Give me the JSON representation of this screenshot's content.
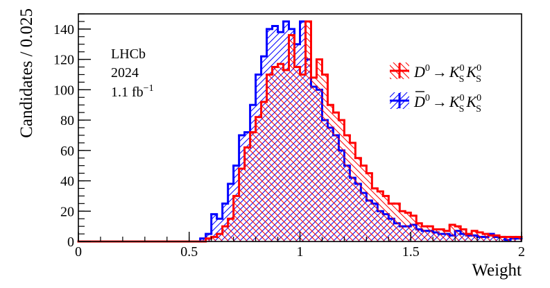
{
  "chart_data": {
    "type": "histogram",
    "title": "",
    "xlabel": "Weight",
    "ylabel": "Candidates / 0.025",
    "xlim": [
      0,
      2
    ],
    "ylim": [
      0,
      150
    ],
    "bin_width": 0.025,
    "x_ticks": [
      0,
      0.5,
      1,
      1.5,
      2
    ],
    "x_tick_labels": [
      "0",
      "0.5",
      "1",
      "1.5",
      "2"
    ],
    "y_ticks": [
      0,
      20,
      40,
      60,
      80,
      100,
      120,
      140
    ],
    "y_tick_labels": [
      "0",
      "20",
      "40",
      "60",
      "80",
      "100",
      "120",
      "140"
    ],
    "annotations": [
      "LHCb",
      "2024",
      "1.1 fb"
    ],
    "annotation_lumi_exp": "−1",
    "legend_position": "top-right",
    "series": [
      {
        "name": "D0 → KS0 KS0",
        "legend_parts": {
          "particle": "D",
          "particle_sup": "0",
          "arrow": "→",
          "k": "K",
          "k_sup": "0",
          "k_sub": "S"
        },
        "color": "#ff0000",
        "hatch": "diagonal-down",
        "values": [
          0,
          0,
          0,
          0,
          0,
          0,
          0,
          0,
          0,
          0,
          0,
          0,
          0,
          0,
          0,
          0,
          0,
          0,
          0,
          0,
          0,
          0,
          0,
          2,
          3,
          5,
          10,
          15,
          30,
          48,
          62,
          72,
          82,
          92,
          110,
          115,
          117,
          113,
          136,
          115,
          110,
          145,
          108,
          120,
          110,
          90,
          85,
          80,
          70,
          65,
          55,
          50,
          45,
          35,
          33,
          30,
          25,
          25,
          20,
          19,
          17,
          12,
          10,
          10,
          8,
          8,
          7,
          11,
          10,
          8,
          5,
          7,
          6,
          5,
          4,
          4,
          3,
          3,
          3,
          3
        ]
      },
      {
        "name": "D̄0 → KS0 KS0",
        "legend_parts": {
          "particle": "D",
          "particle_sup": "0",
          "arrow": "→",
          "k": "K",
          "k_sup": "0",
          "k_sub": "S"
        },
        "color": "#0000ff",
        "hatch": "diagonal-up",
        "values": [
          0,
          0,
          0,
          0,
          0,
          0,
          0,
          0,
          0,
          0,
          0,
          0,
          0,
          0,
          0,
          0,
          0,
          0,
          0,
          0,
          0,
          0,
          2,
          5,
          18,
          15,
          25,
          38,
          50,
          70,
          72,
          90,
          110,
          122,
          140,
          142,
          138,
          145,
          140,
          130,
          145,
          120,
          102,
          100,
          80,
          75,
          70,
          60,
          50,
          42,
          38,
          32,
          27,
          25,
          20,
          18,
          15,
          12,
          10,
          10,
          11,
          8,
          7,
          7,
          6,
          5,
          5,
          4,
          7,
          5,
          4,
          4,
          3,
          3,
          5,
          3,
          3,
          1,
          2,
          2
        ]
      }
    ]
  }
}
